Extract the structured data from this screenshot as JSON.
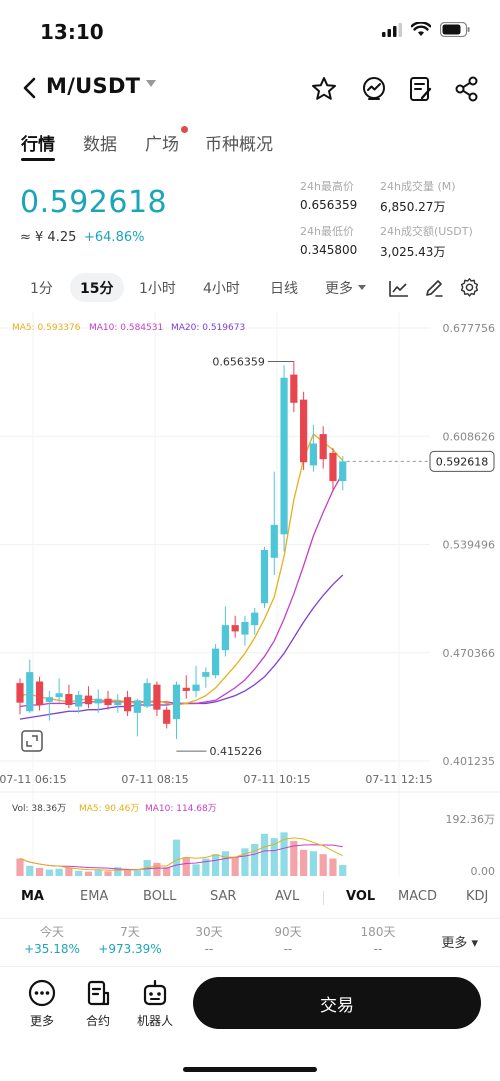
{
  "status": {
    "time": "13:10"
  },
  "header": {
    "pair": "M/USDT"
  },
  "tabs": [
    "行情",
    "数据",
    "广场",
    "币种概况"
  ],
  "ticker": {
    "price": "0.592618",
    "cny": "≈ ¥ 4.25",
    "change": "+64.86%",
    "high_label": "24h最高价",
    "high": "0.656359",
    "low_label": "24h最低价",
    "low": "0.345800",
    "vol_label": "24h成交量 (M)",
    "vol": "6,850.27万",
    "turnover_label": "24h成交额(USDT)",
    "turnover": "3,025.43万"
  },
  "timeframes": [
    "1分",
    "15分",
    "1小时",
    "4小时",
    "日线",
    "更多"
  ],
  "indicators": [
    "MA",
    "EMA",
    "BOLL",
    "SAR",
    "AVL",
    "VOL",
    "MACD",
    "KDJ"
  ],
  "performance": [
    {
      "label": "今天",
      "value": "+35.18%"
    },
    {
      "label": "7天",
      "value": "+973.39%"
    },
    {
      "label": "30天",
      "value": "--"
    },
    {
      "label": "90天",
      "value": "--"
    },
    {
      "label": "180天",
      "value": "--"
    }
  ],
  "perf_more": "更多",
  "bottom_nav": {
    "more": "更多",
    "contract": "合约",
    "robot": "机器人",
    "trade": "交易"
  },
  "colors": {
    "up": "#4fc6d8",
    "down": "#e8454f",
    "ma5": "#e6b019",
    "ma10": "#c53fc5",
    "ma20": "#7b3fd9",
    "accent": "#1ba6b8"
  },
  "chart_data": {
    "type": "candlestick",
    "ma_legend": {
      "ma5": "MA5: 0.593376",
      "ma10": "MA10: 0.584531",
      "ma20": "MA20: 0.519673"
    },
    "y_ticks": [
      "0.677756",
      "0.608626",
      "0.539496",
      "0.470366",
      "0.401235"
    ],
    "y_range": [
      0.401235,
      0.677756
    ],
    "x_ticks": [
      "07-11 06:15",
      "07-11 08:15",
      "07-11 10:15",
      "07-11 12:15"
    ],
    "current_price": "0.592618",
    "high_marker": "0.656359",
    "low_marker": "0.415226",
    "candles": [
      [
        0.451,
        0.454,
        0.431,
        0.4385
      ],
      [
        0.433,
        0.466,
        0.432,
        0.458
      ],
      [
        0.452,
        0.455,
        0.4335,
        0.437
      ],
      [
        0.439,
        0.446,
        0.427,
        0.442
      ],
      [
        0.442,
        0.454,
        0.4385,
        0.4445
      ],
      [
        0.444,
        0.45,
        0.435,
        0.437
      ],
      [
        0.436,
        0.446,
        0.432,
        0.4435
      ],
      [
        0.443,
        0.449,
        0.435,
        0.4375
      ],
      [
        0.438,
        0.447,
        0.432,
        0.441
      ],
      [
        0.441,
        0.446,
        0.434,
        0.437
      ],
      [
        0.437,
        0.444,
        0.432,
        0.439
      ],
      [
        0.442,
        0.446,
        0.43,
        0.433
      ],
      [
        0.432,
        0.441,
        0.417,
        0.44
      ],
      [
        0.436,
        0.454,
        0.435,
        0.451
      ],
      [
        0.45,
        0.452,
        0.43,
        0.434
      ],
      [
        0.434,
        0.436,
        0.422,
        0.425
      ],
      [
        0.428,
        0.452,
        0.4152,
        0.45
      ],
      [
        0.448,
        0.456,
        0.441,
        0.446
      ],
      [
        0.446,
        0.462,
        0.442,
        0.45
      ],
      [
        0.455,
        0.461,
        0.448,
        0.458
      ],
      [
        0.456,
        0.476,
        0.454,
        0.473
      ],
      [
        0.472,
        0.5,
        0.468,
        0.488
      ],
      [
        0.488,
        0.494,
        0.48,
        0.484
      ],
      [
        0.482,
        0.494,
        0.475,
        0.49
      ],
      [
        0.488,
        0.499,
        0.482,
        0.496
      ],
      [
        0.502,
        0.538,
        0.499,
        0.536
      ],
      [
        0.531,
        0.586,
        0.52,
        0.552
      ],
      [
        0.546,
        0.654,
        0.535,
        0.646
      ],
      [
        0.648,
        0.6564,
        0.624,
        0.63
      ],
      [
        0.632,
        0.637,
        0.587,
        0.592
      ],
      [
        0.59,
        0.616,
        0.586,
        0.604
      ],
      [
        0.61,
        0.615,
        0.588,
        0.594
      ],
      [
        0.598,
        0.601,
        0.573,
        0.58
      ],
      [
        0.58,
        0.596,
        0.574,
        0.5926
      ]
    ],
    "ma5_values": [
      0.443,
      0.444,
      0.442,
      0.441,
      0.44,
      0.439,
      0.44,
      0.441,
      0.44,
      0.44,
      0.44,
      0.439,
      0.438,
      0.439,
      0.44,
      0.438,
      0.437,
      0.438,
      0.44,
      0.443,
      0.448,
      0.455,
      0.462,
      0.47,
      0.48,
      0.492,
      0.506,
      0.532,
      0.568,
      0.594,
      0.61,
      0.605,
      0.6,
      0.593
    ],
    "ma10_values": [
      0.436,
      0.437,
      0.437,
      0.438,
      0.438,
      0.438,
      0.438,
      0.439,
      0.439,
      0.439,
      0.439,
      0.439,
      0.439,
      0.439,
      0.439,
      0.439,
      0.438,
      0.438,
      0.438,
      0.439,
      0.44,
      0.444,
      0.448,
      0.453,
      0.46,
      0.468,
      0.478,
      0.492,
      0.508,
      0.526,
      0.545,
      0.56,
      0.574,
      0.585
    ],
    "ma20_values": [
      0.428,
      0.429,
      0.43,
      0.431,
      0.432,
      0.433,
      0.433,
      0.434,
      0.434,
      0.435,
      0.436,
      0.436,
      0.437,
      0.437,
      0.437,
      0.437,
      0.438,
      0.438,
      0.438,
      0.438,
      0.439,
      0.441,
      0.443,
      0.446,
      0.45,
      0.455,
      0.462,
      0.47,
      0.48,
      0.49,
      0.499,
      0.507,
      0.514,
      0.52
    ],
    "volume": {
      "legend_vol": "Vol: 38.36万",
      "legend_ma5": "MA5: 90.46万",
      "legend_ma10": "MA10: 114.68万",
      "y_ticks": [
        "192.36万",
        "0.00"
      ],
      "y_max": 192.36,
      "values": [
        60,
        35,
        28,
        22,
        25,
        30,
        18,
        15,
        20,
        16,
        30,
        22,
        20,
        55,
        45,
        30,
        125,
        65,
        40,
        60,
        75,
        85,
        65,
        95,
        110,
        145,
        130,
        150,
        120,
        90,
        85,
        75,
        60,
        38
      ]
    }
  }
}
